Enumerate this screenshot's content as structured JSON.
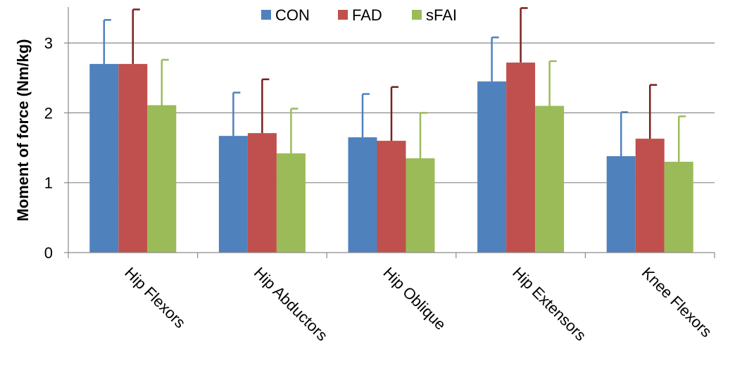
{
  "chart_data": {
    "type": "bar",
    "title": "",
    "xlabel": "",
    "ylabel": "Moment of force (Nm/kg)",
    "ylim": [
      0,
      3.5
    ],
    "yticks": [
      0,
      1,
      2,
      3
    ],
    "grid": true,
    "legend_position": "top-center",
    "categories": [
      "Hip Flexors",
      "Hip Abductors",
      "Hip Oblique",
      "Hip Extensors",
      "Knee Flexors"
    ],
    "series": [
      {
        "name": "CON",
        "color": "#4f81bd",
        "error_color": "#4f81bd",
        "values": [
          2.7,
          1.67,
          1.65,
          2.45,
          1.38
        ],
        "error_upper": [
          3.33,
          2.29,
          2.27,
          3.08,
          2.01
        ]
      },
      {
        "name": "FAD",
        "color": "#c0504d",
        "error_color": "#7b1f1f",
        "values": [
          2.7,
          1.71,
          1.6,
          2.72,
          1.63
        ],
        "error_upper": [
          3.48,
          2.48,
          2.37,
          3.5,
          2.4
        ]
      },
      {
        "name": "sFAI",
        "color": "#9bbb59",
        "error_color": "#9bbb59",
        "values": [
          2.11,
          1.42,
          1.35,
          2.1,
          1.3
        ],
        "error_upper": [
          2.76,
          2.06,
          2.0,
          2.74,
          1.95
        ]
      }
    ]
  }
}
